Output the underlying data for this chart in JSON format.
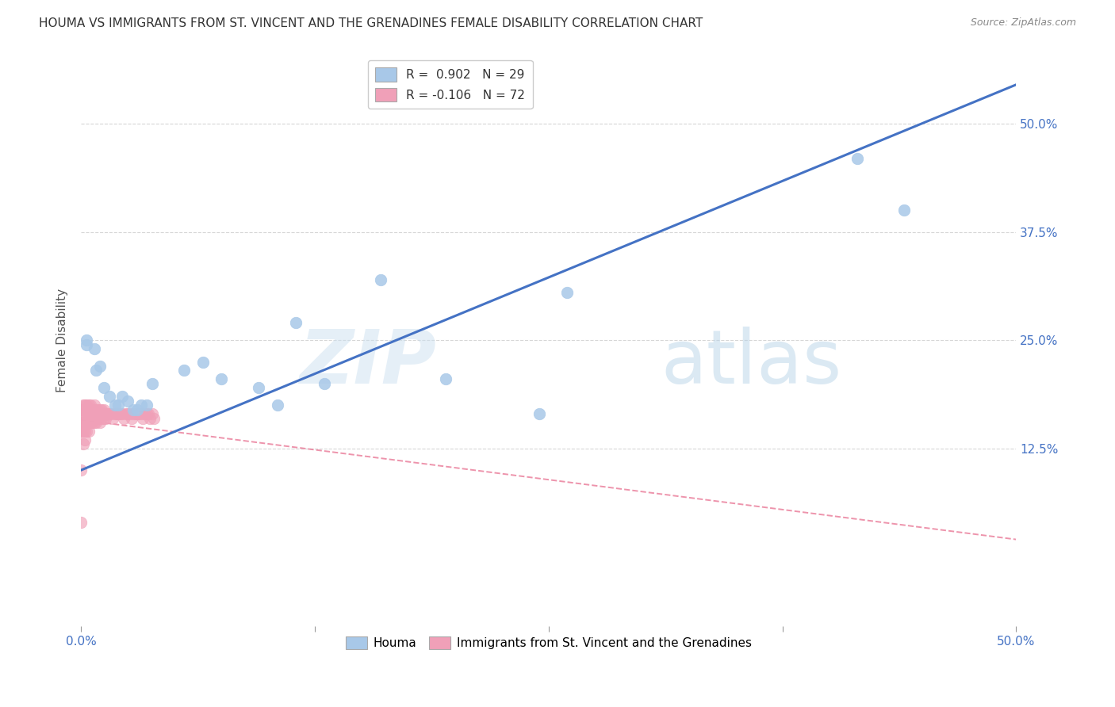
{
  "title": "HOUMA VS IMMIGRANTS FROM ST. VINCENT AND THE GRENADINES FEMALE DISABILITY CORRELATION CHART",
  "source": "Source: ZipAtlas.com",
  "ylabel": "Female Disability",
  "yticks_labels": [
    "50.0%",
    "37.5%",
    "25.0%",
    "12.5%"
  ],
  "ytick_vals": [
    0.5,
    0.375,
    0.25,
    0.125
  ],
  "xlim": [
    0.0,
    0.5
  ],
  "ylim": [
    -0.08,
    0.58
  ],
  "legend_blue_r": "0.902",
  "legend_blue_n": "29",
  "legend_pink_r": "-0.106",
  "legend_pink_n": "72",
  "blue_color": "#a8c8e8",
  "pink_color": "#f0a0b8",
  "blue_line_color": "#4472C4",
  "pink_line_color": "#e87090",
  "watermark_zip": "ZIP",
  "watermark_atlas": "atlas",
  "blue_scatter_x": [
    0.003,
    0.007,
    0.008,
    0.01,
    0.012,
    0.015,
    0.018,
    0.02,
    0.022,
    0.025,
    0.028,
    0.03,
    0.032,
    0.035,
    0.038,
    0.055,
    0.065,
    0.075,
    0.095,
    0.105,
    0.115,
    0.13,
    0.16,
    0.195,
    0.245,
    0.26,
    0.415,
    0.44,
    0.003
  ],
  "blue_scatter_y": [
    0.245,
    0.24,
    0.215,
    0.22,
    0.195,
    0.185,
    0.175,
    0.175,
    0.185,
    0.18,
    0.17,
    0.17,
    0.175,
    0.175,
    0.2,
    0.215,
    0.225,
    0.205,
    0.195,
    0.175,
    0.27,
    0.2,
    0.32,
    0.205,
    0.165,
    0.305,
    0.46,
    0.4,
    0.25
  ],
  "pink_scatter_x": [
    0.0,
    0.0,
    0.0,
    0.0,
    0.0,
    0.001,
    0.001,
    0.001,
    0.001,
    0.001,
    0.002,
    0.002,
    0.002,
    0.002,
    0.002,
    0.003,
    0.003,
    0.003,
    0.003,
    0.004,
    0.004,
    0.004,
    0.004,
    0.005,
    0.005,
    0.005,
    0.006,
    0.006,
    0.006,
    0.007,
    0.007,
    0.007,
    0.008,
    0.008,
    0.008,
    0.009,
    0.009,
    0.01,
    0.01,
    0.01,
    0.011,
    0.011,
    0.012,
    0.012,
    0.013,
    0.013,
    0.014,
    0.015,
    0.016,
    0.017,
    0.018,
    0.019,
    0.02,
    0.021,
    0.022,
    0.023,
    0.024,
    0.025,
    0.026,
    0.027,
    0.028,
    0.029,
    0.03,
    0.031,
    0.032,
    0.033,
    0.034,
    0.035,
    0.036,
    0.037,
    0.038,
    0.039
  ],
  "pink_scatter_y": [
    0.17,
    0.155,
    0.145,
    0.1,
    0.04,
    0.175,
    0.165,
    0.155,
    0.145,
    0.13,
    0.175,
    0.165,
    0.155,
    0.145,
    0.135,
    0.175,
    0.165,
    0.155,
    0.145,
    0.175,
    0.165,
    0.155,
    0.145,
    0.175,
    0.165,
    0.155,
    0.17,
    0.165,
    0.155,
    0.175,
    0.165,
    0.155,
    0.17,
    0.165,
    0.155,
    0.17,
    0.16,
    0.17,
    0.165,
    0.155,
    0.17,
    0.16,
    0.17,
    0.16,
    0.165,
    0.16,
    0.165,
    0.165,
    0.165,
    0.16,
    0.165,
    0.165,
    0.165,
    0.165,
    0.165,
    0.16,
    0.165,
    0.165,
    0.165,
    0.16,
    0.165,
    0.165,
    0.165,
    0.165,
    0.165,
    0.16,
    0.165,
    0.165,
    0.165,
    0.16,
    0.165,
    0.16
  ],
  "blue_line_x": [
    0.0,
    0.5
  ],
  "blue_line_y": [
    0.1,
    0.545
  ],
  "pink_line_x": [
    0.0,
    0.5
  ],
  "pink_line_y": [
    0.158,
    0.02
  ]
}
